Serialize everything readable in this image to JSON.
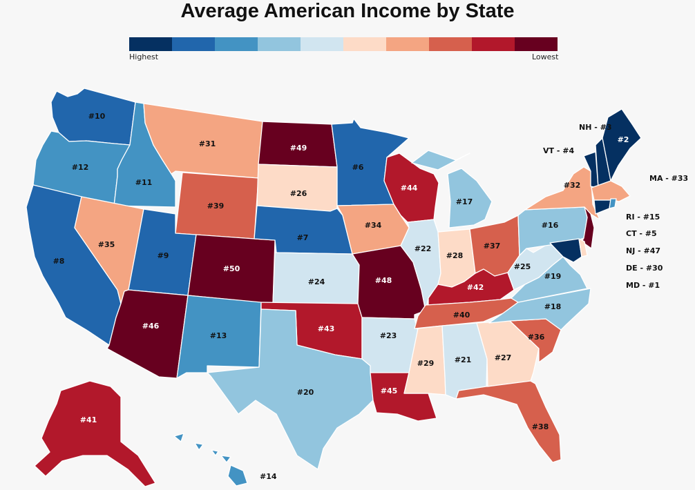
{
  "title": "Average American Income by State",
  "legend": {
    "left_label": "Highest",
    "right_label": "Lowest",
    "colors": [
      "#053061",
      "#2166ac",
      "#4393c3",
      "#92c5de",
      "#d1e5f0",
      "#fddbc7",
      "#f4a582",
      "#d6604d",
      "#b2182b",
      "#67001f"
    ]
  },
  "states": {
    "WA": "#10",
    "OR": "#12",
    "CA": "#8",
    "ID": "#11",
    "NV": "#35",
    "MT": "#31",
    "WY": "#39",
    "UT": "#9",
    "AZ": "#46",
    "CO": "#50",
    "NM": "#13",
    "ND": "#49",
    "SD": "#26",
    "NE": "#7",
    "KS": "#24",
    "OK": "#43",
    "TX": "#20",
    "MN": "#6",
    "IA": "#34",
    "MO": "#48",
    "AR": "#23",
    "LA": "#45",
    "WI": "#44",
    "IL": "#22",
    "MI": "#17",
    "IN": "#28",
    "OH": "#37",
    "KY": "#42",
    "TN": "#40",
    "MS": "#29",
    "AL": "#21",
    "GA": "#27",
    "FL": "#38",
    "SC": "#36",
    "NC": "#18",
    "VA": "#19",
    "WV": "#25",
    "PA": "#16",
    "NY": "#32",
    "ME": "#2",
    "AK": "#41",
    "HI": "#14"
  },
  "callouts": {
    "NH": "NH - #3",
    "VT": "VT - #4",
    "MA": "MA - #33",
    "RI": "RI - #15",
    "CT": "CT - #5",
    "NJ": "NJ - #47",
    "DE": "DE - #30",
    "MD": "MD - #1"
  }
}
